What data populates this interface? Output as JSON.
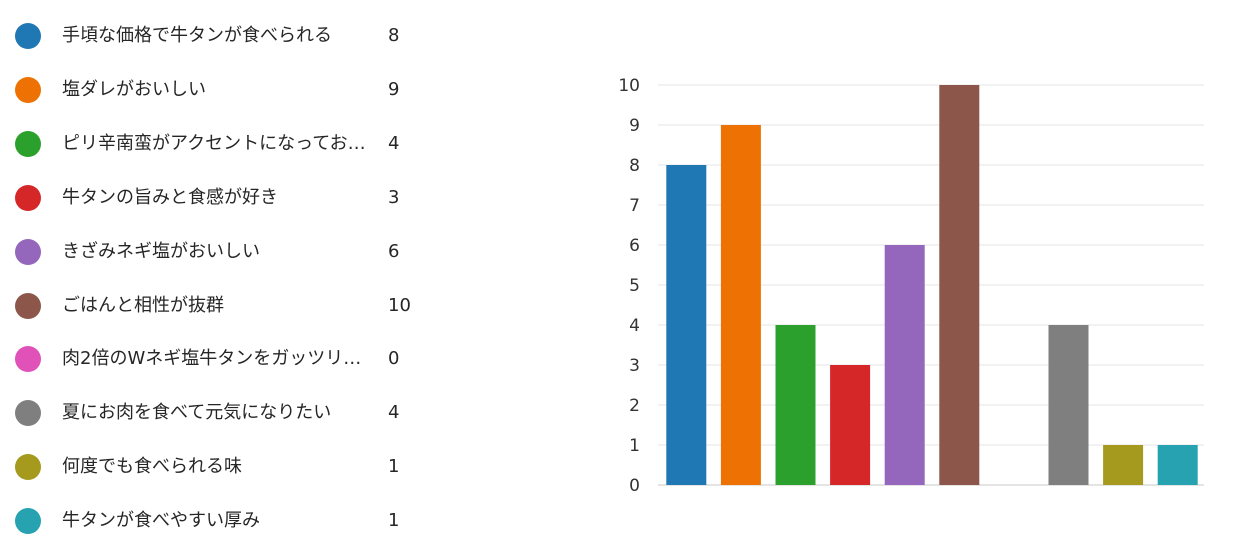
{
  "chart_data": {
    "type": "bar",
    "categories": [
      "手頃な価格で牛タンが食べられる",
      "塩ダレがおいしい",
      "ピリ辛南蛮がアクセントになっておい...",
      "牛タンの旨みと食感が好き",
      "きざみネギ塩がおいしい",
      "ごはんと相性が抜群",
      "肉2倍のWネギ塩牛タンをガッツリ食...",
      "夏にお肉を食べて元気になりたい",
      "何度でも食べられる味",
      "牛タンが食べやすい厚み"
    ],
    "values": [
      8,
      9,
      4,
      3,
      6,
      10,
      0,
      4,
      1,
      1
    ],
    "counts": [
      "8",
      "9",
      "4",
      "3",
      "6",
      "10",
      "0",
      "4",
      "1",
      "1"
    ],
    "colors": [
      "#1f77b4",
      "#ee7203",
      "#2ca02c",
      "#d62728",
      "#9467bd",
      "#8c564b",
      "#e052b7",
      "#7f7f7f",
      "#a59a1d",
      "#26a2b0"
    ],
    "yticks": [
      "0",
      "1",
      "2",
      "3",
      "4",
      "5",
      "6",
      "7",
      "8",
      "9",
      "10"
    ],
    "ylim": [
      0,
      10
    ],
    "grid": true,
    "legend_position": "left"
  }
}
